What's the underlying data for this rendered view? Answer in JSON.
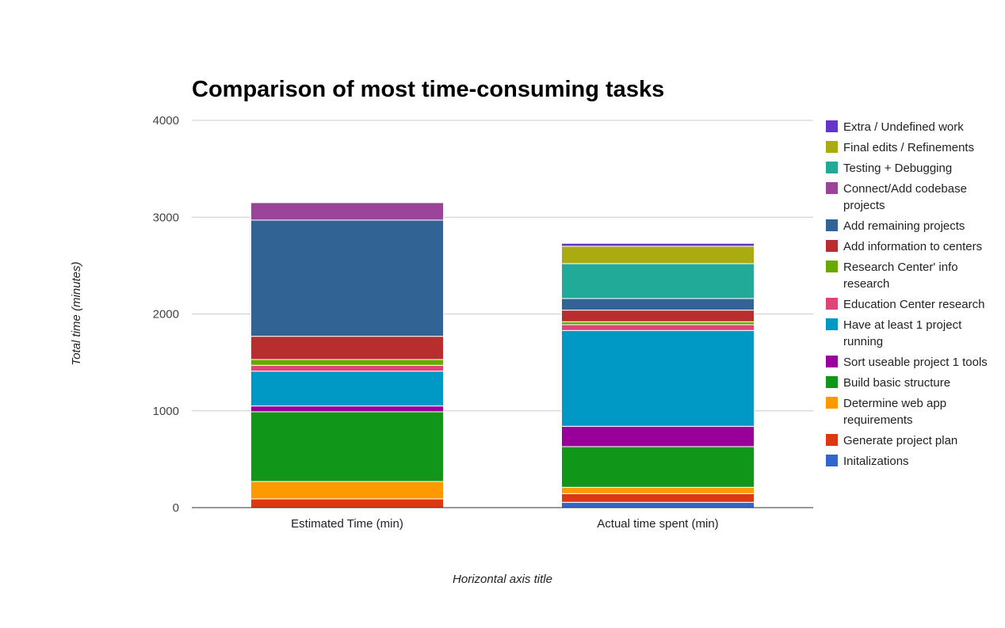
{
  "chart_data": {
    "type": "bar",
    "stacked": true,
    "title": "Comparison of most time-consuming tasks",
    "xlabel": "Horizontal axis title",
    "ylabel": "Total time (minutes)",
    "ylim": [
      0,
      4000
    ],
    "yticks": [
      0,
      1000,
      2000,
      3000,
      4000
    ],
    "grid": true,
    "legend_position": "right",
    "categories": [
      "Estimated Time (min)",
      "Actual time spent (min)"
    ],
    "series": [
      {
        "name": "Initalizations",
        "color": "#3366cc",
        "values": [
          0,
          55
        ]
      },
      {
        "name": "Generate project plan",
        "color": "#dc3912",
        "values": [
          90,
          90
        ]
      },
      {
        "name": "Determine web app requirements",
        "color": "#ff9900",
        "values": [
          180,
          65
        ]
      },
      {
        "name": "Build basic structure",
        "color": "#109618",
        "values": [
          720,
          420
        ]
      },
      {
        "name": "Sort useable project 1 tools",
        "color": "#990099",
        "values": [
          60,
          210
        ]
      },
      {
        "name": "Have at least 1 project running",
        "color": "#0099c6",
        "values": [
          360,
          990
        ]
      },
      {
        "name": "Education Center research",
        "color": "#dd4477",
        "values": [
          60,
          60
        ]
      },
      {
        "name": "Research Center' info research",
        "color": "#66aa00",
        "values": [
          60,
          30
        ]
      },
      {
        "name": "Add information to centers",
        "color": "#b82e2e",
        "values": [
          240,
          120
        ]
      },
      {
        "name": "Add remaining projects",
        "color": "#316395",
        "values": [
          1200,
          120
        ]
      },
      {
        "name": "Connect/Add codebase projects",
        "color": "#994499",
        "values": [
          180,
          0
        ]
      },
      {
        "name": "Testing + Debugging",
        "color": "#22aa99",
        "values": [
          0,
          360
        ]
      },
      {
        "name": "Final edits / Refinements",
        "color": "#aaaa11",
        "values": [
          0,
          180
        ]
      },
      {
        "name": "Extra / Undefined work",
        "color": "#6633cc",
        "values": [
          0,
          30
        ]
      }
    ]
  }
}
